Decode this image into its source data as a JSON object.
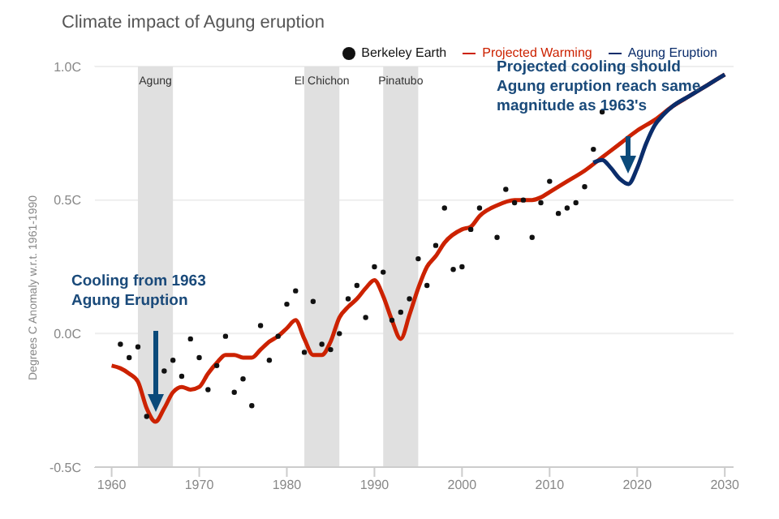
{
  "chart_data": {
    "type": "line",
    "title": "Climate impact of Agung eruption",
    "ylabel": "Degrees C Anomaly w.r.t. 1961-1990",
    "xlim": [
      1958,
      2031
    ],
    "xticks": [
      1960,
      1970,
      1980,
      1990,
      2000,
      2010,
      2020,
      2030
    ],
    "ylim": [
      -0.5,
      1.0
    ],
    "yticks": [
      {
        "value": -0.5,
        "label": "-0.5C"
      },
      {
        "value": 0,
        "label": "0.0C"
      },
      {
        "value": 0.5,
        "label": "0.5C"
      },
      {
        "value": 1.0,
        "label": "1.0C"
      }
    ],
    "grid": "y",
    "legend": "top right",
    "series": [
      {
        "name": "Berkeley Earth",
        "type": "scatter",
        "color": "#111111",
        "marker": "circle",
        "x": [
          1961,
          1962,
          1963,
          1964,
          1966,
          1967,
          1968,
          1969,
          1970,
          1971,
          1972,
          1973,
          1974,
          1975,
          1976,
          1977,
          1978,
          1979,
          1980,
          1981,
          1982,
          1983,
          1984,
          1985,
          1986,
          1987,
          1988,
          1989,
          1990,
          1991,
          1992,
          1993,
          1994,
          1995,
          1996,
          1997,
          1998,
          1999,
          2000,
          2001,
          2002,
          2004,
          2005,
          2006,
          2007,
          2008,
          2009,
          2010,
          2011,
          2012,
          2013,
          2014,
          2015,
          2016
        ],
        "values": [
          -0.04,
          -0.09,
          -0.05,
          -0.31,
          -0.14,
          -0.1,
          -0.16,
          -0.02,
          -0.09,
          -0.21,
          -0.12,
          -0.01,
          -0.22,
          -0.17,
          -0.27,
          0.03,
          -0.1,
          -0.01,
          0.11,
          0.16,
          -0.07,
          0.12,
          -0.04,
          -0.06,
          0.0,
          0.13,
          0.18,
          0.06,
          0.25,
          0.23,
          0.05,
          0.08,
          0.13,
          0.28,
          0.18,
          0.33,
          0.47,
          0.24,
          0.25,
          0.39,
          0.47,
          0.36,
          0.54,
          0.49,
          0.5,
          0.36,
          0.49,
          0.57,
          0.45,
          0.47,
          0.49,
          0.55,
          0.69,
          0.83
        ]
      },
      {
        "name": "Projected Warming",
        "color": "#cc2200",
        "line_style": "solid",
        "x": [
          1960,
          1961,
          1962,
          1963,
          1964,
          1965,
          1966,
          1967,
          1968,
          1969,
          1970,
          1971,
          1972,
          1973,
          1974,
          1975,
          1976,
          1977,
          1978,
          1979,
          1980,
          1981,
          1982,
          1983,
          1984,
          1985,
          1986,
          1987,
          1988,
          1989,
          1990,
          1991,
          1992,
          1993,
          1994,
          1995,
          1996,
          1997,
          1998,
          2000,
          2001,
          2002,
          2004,
          2006,
          2007,
          2008,
          2009,
          2010,
          2012,
          2014,
          2016,
          2018,
          2020,
          2022,
          2024,
          2026,
          2028,
          2030
        ],
        "values": [
          -0.12,
          -0.13,
          -0.15,
          -0.18,
          -0.28,
          -0.33,
          -0.28,
          -0.22,
          -0.2,
          -0.21,
          -0.2,
          -0.15,
          -0.11,
          -0.08,
          -0.08,
          -0.09,
          -0.09,
          -0.06,
          -0.03,
          -0.01,
          0.02,
          0.05,
          -0.02,
          -0.08,
          -0.08,
          -0.03,
          0.06,
          0.1,
          0.13,
          0.17,
          0.2,
          0.14,
          0.05,
          -0.02,
          0.07,
          0.17,
          0.25,
          0.29,
          0.34,
          0.39,
          0.4,
          0.44,
          0.48,
          0.5,
          0.5,
          0.5,
          0.51,
          0.53,
          0.57,
          0.61,
          0.66,
          0.71,
          0.76,
          0.8,
          0.85,
          0.89,
          0.93,
          0.97
        ]
      },
      {
        "name": "Agung Eruption",
        "color": "#0b2d6b",
        "line_style": "solid",
        "x": [
          2015,
          2016,
          2017,
          2018,
          2019,
          2020,
          2021,
          2022,
          2023,
          2024,
          2026,
          2028,
          2030
        ],
        "values": [
          0.64,
          0.65,
          0.62,
          0.58,
          0.56,
          0.62,
          0.71,
          0.78,
          0.82,
          0.85,
          0.89,
          0.93,
          0.97
        ]
      }
    ],
    "bands": [
      {
        "axis": "x",
        "from": 1963,
        "to": 1967,
        "label": "Agung",
        "color": "#e0e0e0"
      },
      {
        "axis": "x",
        "from": 1982,
        "to": 1986,
        "label": "El Chichon",
        "color": "#e0e0e0"
      },
      {
        "axis": "x",
        "from": 1991,
        "to": 1995,
        "label": "Pinatubo",
        "color": "#e0e0e0"
      }
    ],
    "annotations": [
      "Cooling from 1963 Agung Eruption",
      "Projected cooling should Agung eruption reach same magnitude as 1963's"
    ]
  }
}
